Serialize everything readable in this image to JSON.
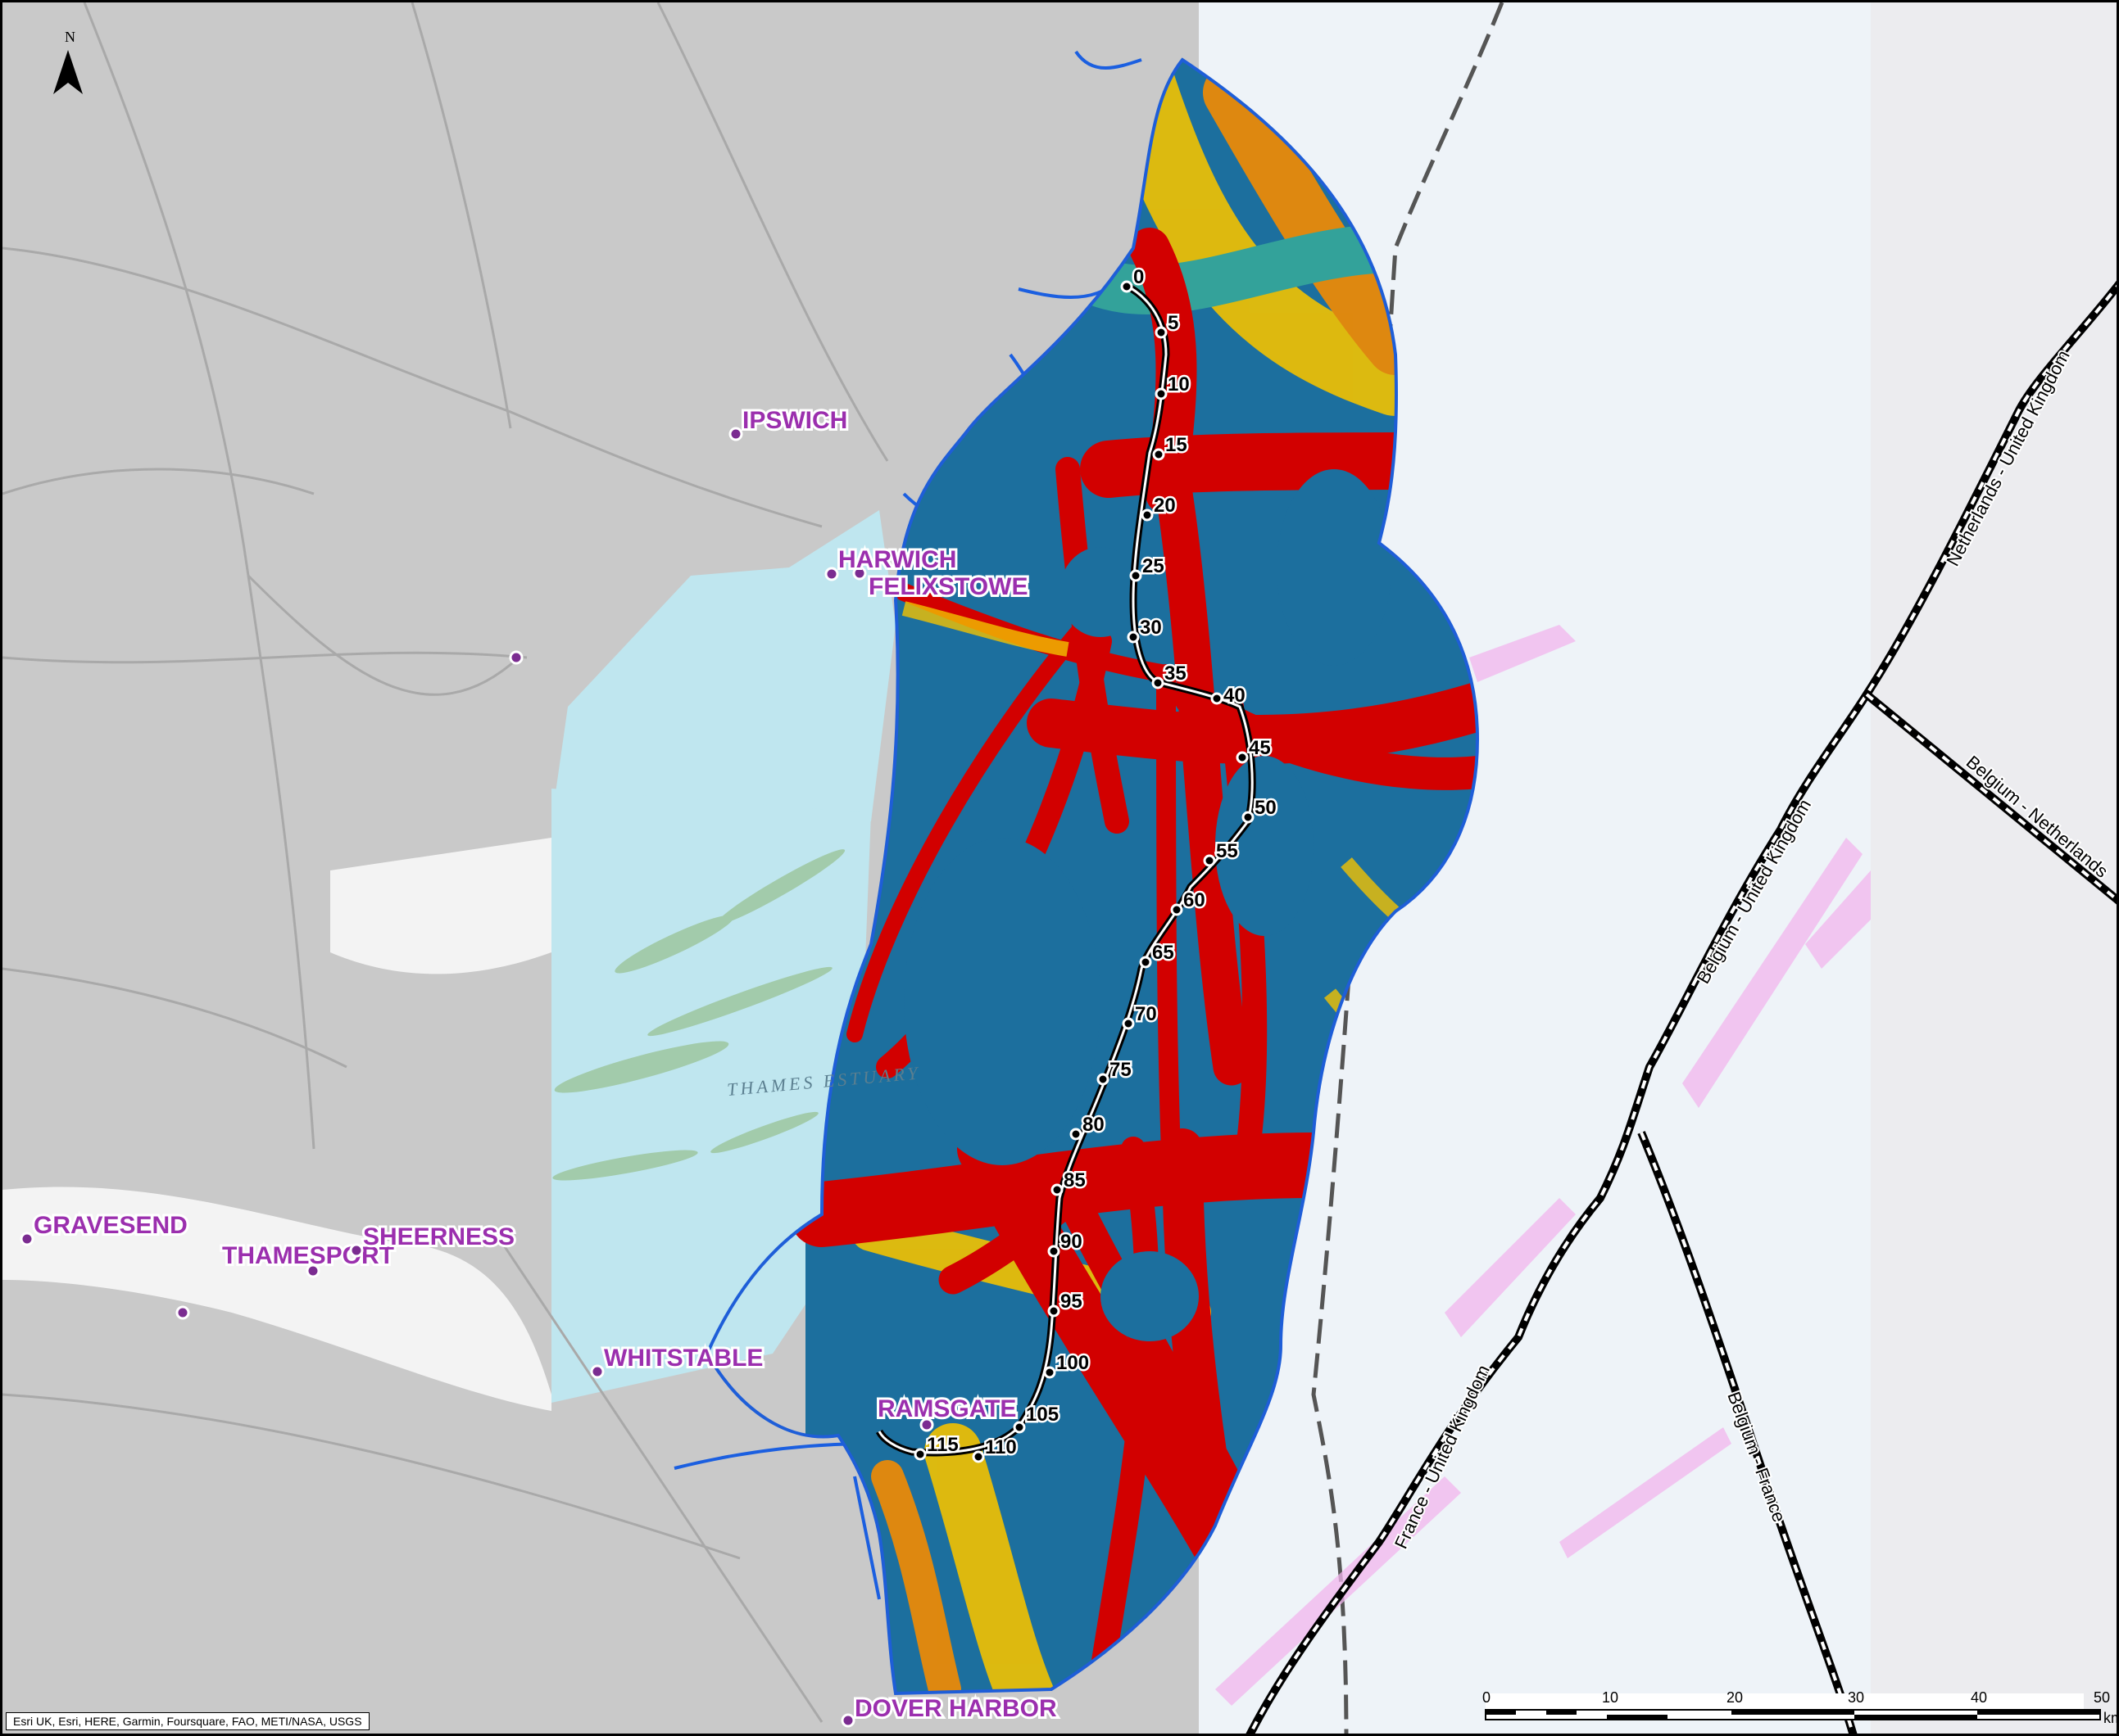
{
  "map": {
    "north_label": "N",
    "attribution": "Esri UK, Esri, HERE, Garmin, Foursquare, FAO, METI/NASA, USGS",
    "water_label": "THAMES ESTUARY",
    "ports": [
      {
        "name": "IPSWICH"
      },
      {
        "name": "HARWICH"
      },
      {
        "name": "FELIXSTOWE"
      },
      {
        "name": "GRAVESEND"
      },
      {
        "name": "THAMESPORT"
      },
      {
        "name": "SHEERNESS"
      },
      {
        "name": "WHITSTABLE"
      },
      {
        "name": "RAMSGATE"
      },
      {
        "name": "DOVER HARBOR"
      }
    ],
    "route_kp_labels": [
      "0",
      "5",
      "10",
      "15",
      "20",
      "25",
      "30",
      "35",
      "40",
      "45",
      "50",
      "55",
      "60",
      "65",
      "70",
      "75",
      "80",
      "85",
      "90",
      "95",
      "100",
      "105",
      "110",
      "115"
    ],
    "boundaries": [
      {
        "label": "Netherlands - United Kingdom"
      },
      {
        "label": "Belgium - Netherlands"
      },
      {
        "label": "Belgium - United Kingdom"
      },
      {
        "label": "France - United Kingdom"
      },
      {
        "label": "Belgium - France"
      }
    ],
    "scale_bar": {
      "ticks": [
        "0",
        "10",
        "20",
        "30",
        "40",
        "50"
      ],
      "unit": "km"
    },
    "colors": {
      "land": "#c9c9c9",
      "sea_chart": "#eef3f8",
      "estuary": "#bfe6ef",
      "density_low": "#1c6f9e",
      "density_mid": "#f2c200",
      "density_high": "#d20000",
      "outline": "#1e5ed8",
      "rivers": "#1b5fe0",
      "port": "#9b2fae"
    }
  }
}
